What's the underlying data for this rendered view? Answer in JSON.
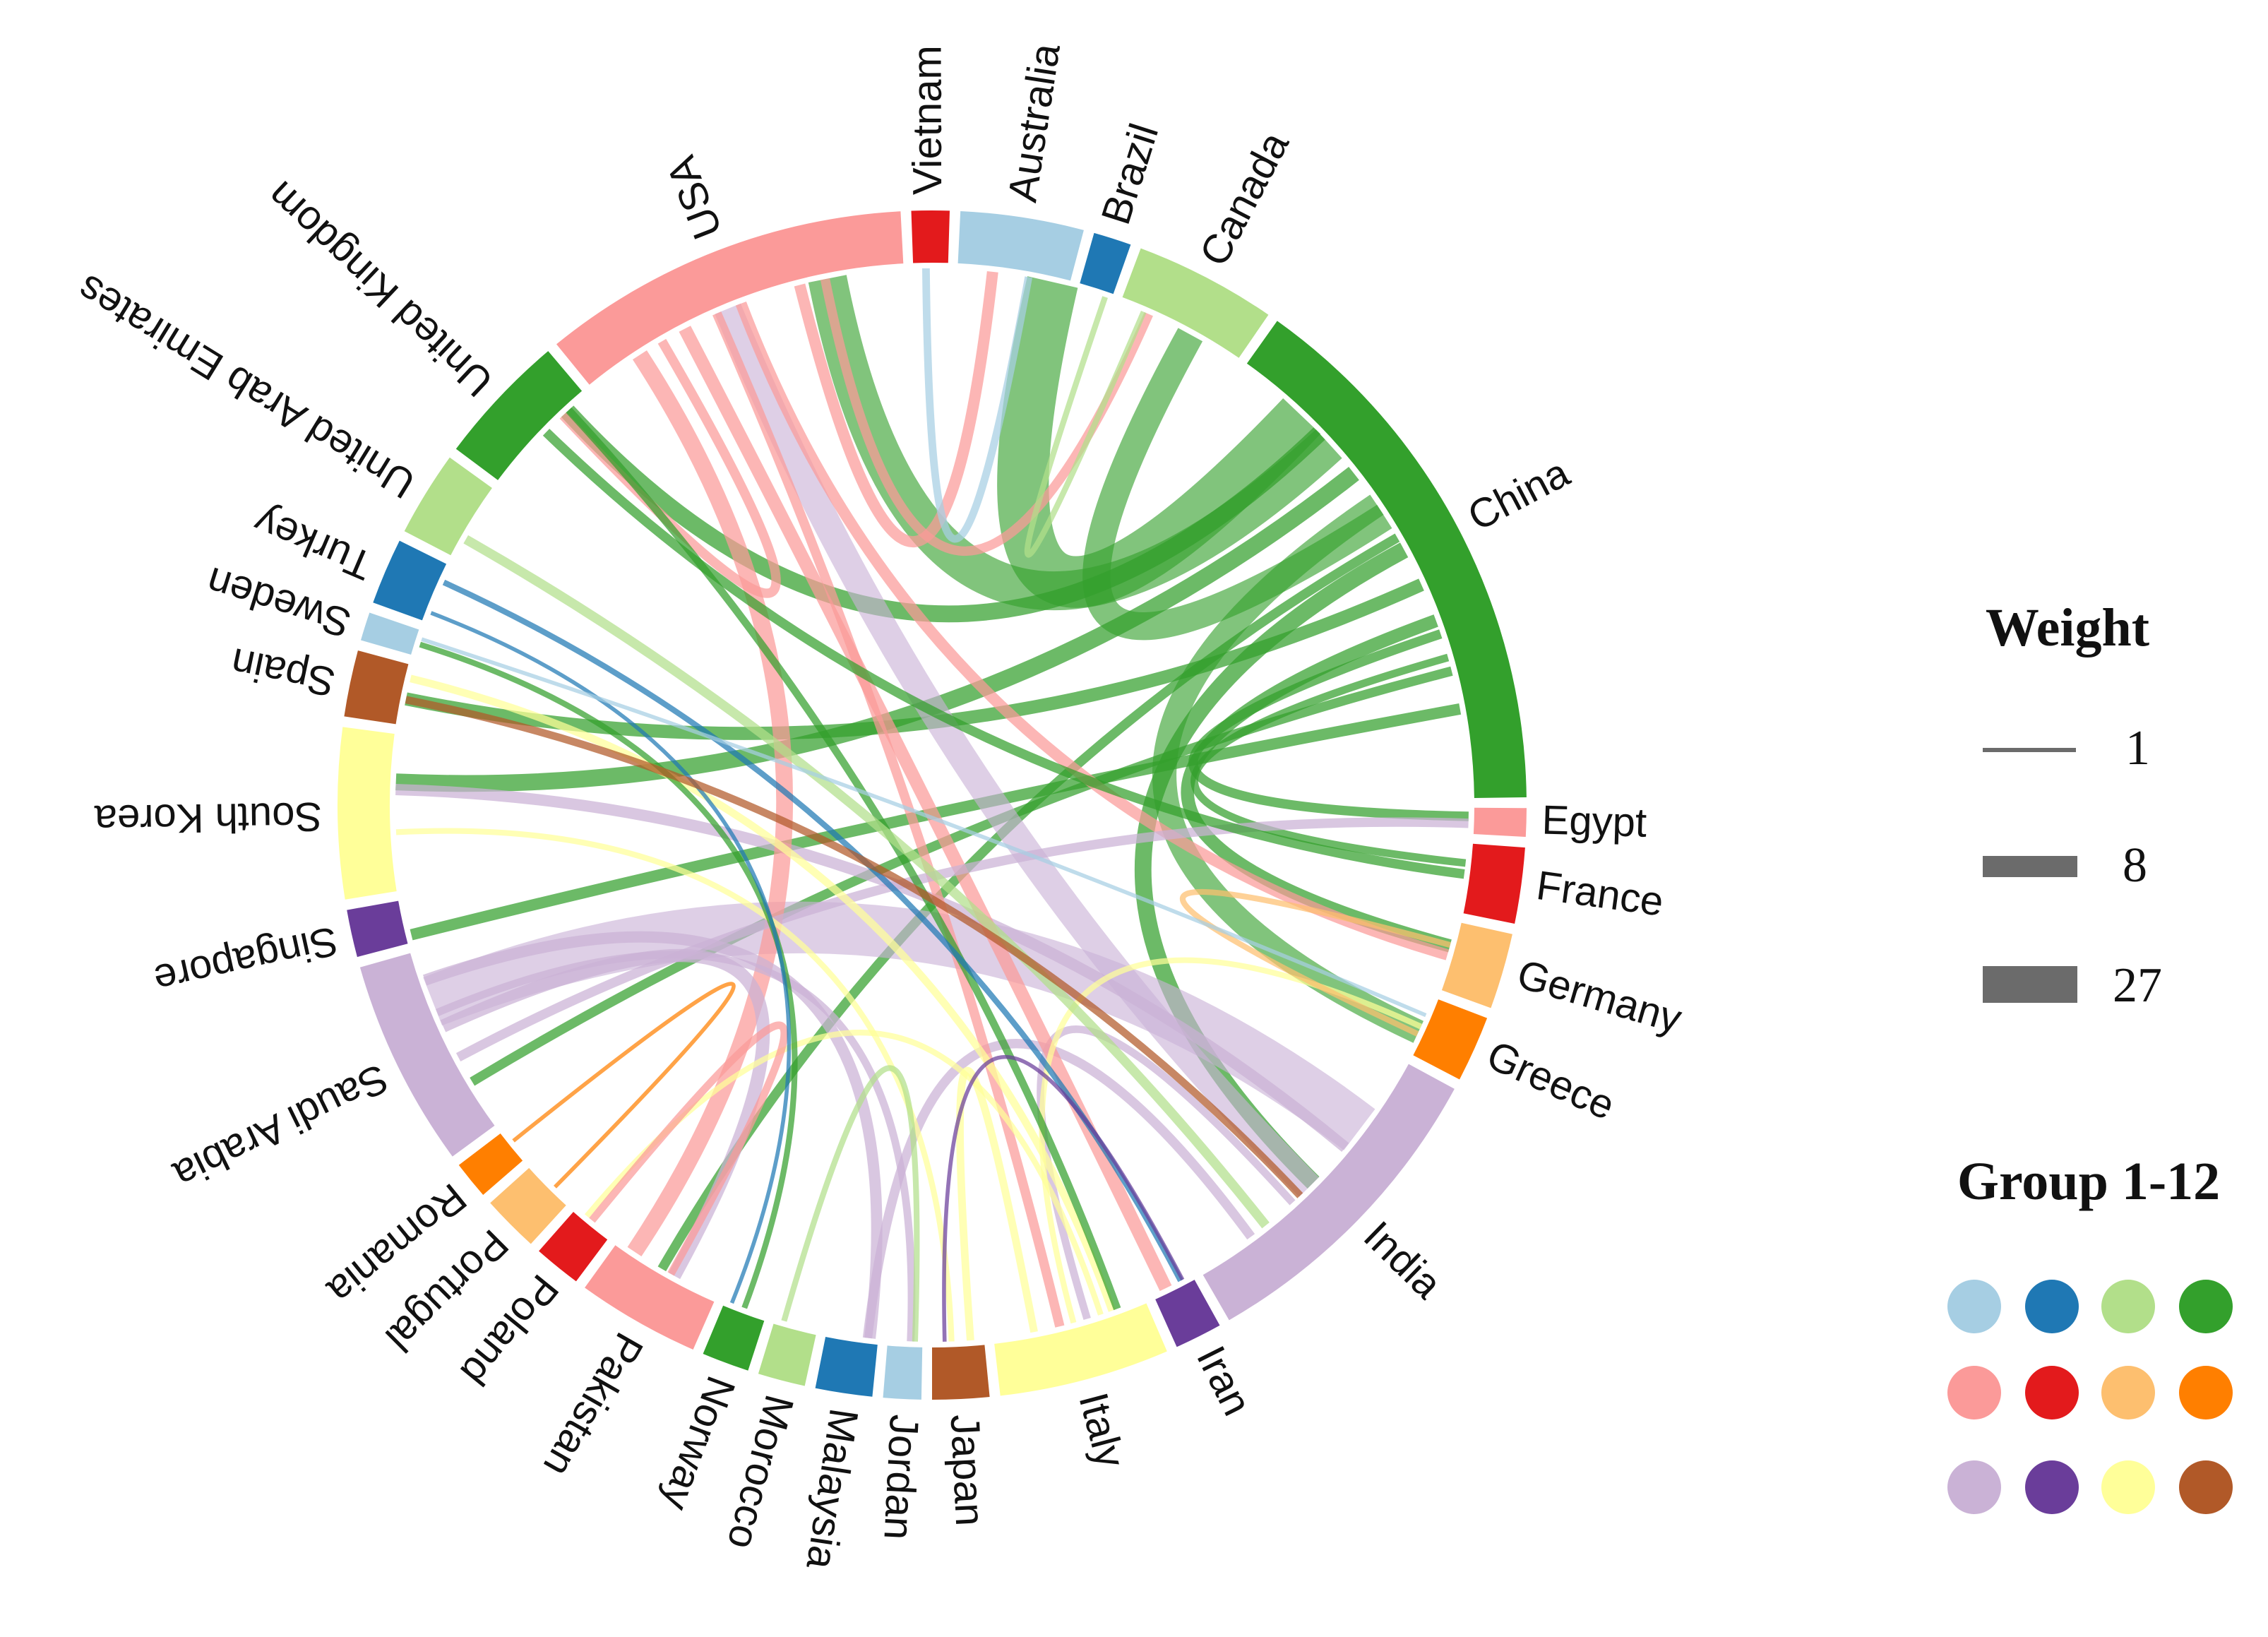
{
  "chart_data": {
    "type": "chord",
    "palette": {
      "1": "#a6cee3",
      "2": "#1f78b4",
      "3": "#b2df8a",
      "4": "#33a02c",
      "5": "#fb9a99",
      "6": "#e31a1c",
      "7": "#fdbf6f",
      "8": "#ff7f00",
      "9": "#cab2d6",
      "10": "#6a3d9a",
      "11": "#ffff99",
      "12": "#b15928"
    },
    "nodes": [
      {
        "name": "Vietnam",
        "group": 6,
        "weight": 4
      },
      {
        "name": "Australia",
        "group": 1,
        "weight": 13
      },
      {
        "name": "Brazil",
        "group": 2,
        "weight": 4
      },
      {
        "name": "Canada",
        "group": 3,
        "weight": 15
      },
      {
        "name": "China",
        "group": 4,
        "weight": 58
      },
      {
        "name": "Egypt",
        "group": 5,
        "weight": 3
      },
      {
        "name": "France",
        "group": 6,
        "weight": 8
      },
      {
        "name": "Germany",
        "group": 7,
        "weight": 8
      },
      {
        "name": "Greece",
        "group": 8,
        "weight": 7
      },
      {
        "name": "India",
        "group": 9,
        "weight": 34
      },
      {
        "name": "Iran",
        "group": 10,
        "weight": 5
      },
      {
        "name": "Italy",
        "group": 11,
        "weight": 18
      },
      {
        "name": "Japan",
        "group": 12,
        "weight": 6
      },
      {
        "name": "Jordan",
        "group": 1,
        "weight": 4
      },
      {
        "name": "Malaysia",
        "group": 2,
        "weight": 6
      },
      {
        "name": "Morocco",
        "group": 3,
        "weight": 5
      },
      {
        "name": "Norway",
        "group": 4,
        "weight": 5
      },
      {
        "name": "Pakistan",
        "group": 5,
        "weight": 13
      },
      {
        "name": "Poland",
        "group": 6,
        "weight": 5
      },
      {
        "name": "Portugal",
        "group": 7,
        "weight": 6
      },
      {
        "name": "Romania",
        "group": 8,
        "weight": 4
      },
      {
        "name": "Saudi Arabia",
        "group": 9,
        "weight": 22
      },
      {
        "name": "Singapore",
        "group": 10,
        "weight": 5
      },
      {
        "name": "South Korea",
        "group": 11,
        "weight": 18
      },
      {
        "name": "Spain",
        "group": 12,
        "weight": 7
      },
      {
        "name": "Sweden",
        "group": 1,
        "weight": 3
      },
      {
        "name": "Turkey",
        "group": 2,
        "weight": 7
      },
      {
        "name": "United Arab Emirates",
        "group": 3,
        "weight": 9
      },
      {
        "name": "United Kingdom",
        "group": 4,
        "weight": 14
      },
      {
        "name": "USA",
        "group": 5,
        "weight": 39
      }
    ],
    "links": [
      [
        "China",
        "Australia",
        27
      ],
      [
        "China",
        "Canada",
        14
      ],
      [
        "China",
        "Egypt",
        4
      ],
      [
        "China",
        "USA",
        20
      ],
      [
        "China",
        "India",
        8
      ],
      [
        "China",
        "Saudi Arabia",
        4
      ],
      [
        "China",
        "South Korea",
        8
      ],
      [
        "China",
        "Spain",
        6
      ],
      [
        "China",
        "Singapore",
        5
      ],
      [
        "China",
        "Greece",
        12
      ],
      [
        "China",
        "Germany",
        6
      ],
      [
        "China",
        "United Kingdom",
        8
      ],
      [
        "China",
        "Pakistan",
        4
      ],
      [
        "China",
        "France",
        3
      ],
      [
        "India",
        "Saudi Arabia",
        27
      ],
      [
        "India",
        "USA",
        14
      ],
      [
        "India",
        "Malaysia",
        4
      ],
      [
        "India",
        "South Korea",
        5
      ],
      [
        "India",
        "Italy",
        3
      ],
      [
        "USA",
        "Pakistan",
        8
      ],
      [
        "USA",
        "Italy",
        4
      ],
      [
        "USA",
        "Australia",
        5
      ],
      [
        "USA",
        "United Kingdom",
        4
      ],
      [
        "USA",
        "Germany",
        5
      ],
      [
        "USA",
        "Canada",
        4
      ],
      [
        "USA",
        "Iran",
        6
      ],
      [
        "Saudi Arabia",
        "Pakistan",
        6
      ],
      [
        "Saudi Arabia",
        "Malaysia",
        5
      ],
      [
        "Saudi Arabia",
        "Egypt",
        4
      ],
      [
        "Saudi Arabia",
        "Jordan",
        3
      ],
      [
        "Italy",
        "Spain",
        3
      ],
      [
        "Italy",
        "Greece",
        2
      ],
      [
        "Italy",
        "Japan",
        3
      ],
      [
        "Italy",
        "Poland",
        2
      ],
      [
        "United Kingdom",
        "France",
        4
      ],
      [
        "United Kingdom",
        "Italy",
        3
      ],
      [
        "South Korea",
        "Japan",
        2
      ],
      [
        "Australia",
        "Vietnam",
        3
      ],
      [
        "Canada",
        "Brazil",
        2
      ],
      [
        "Pakistan",
        "Poland",
        3
      ],
      [
        "Turkey",
        "Iran",
        2
      ],
      [
        "United Arab Emirates",
        "India",
        4
      ],
      [
        "Norway",
        "Sweden",
        2
      ],
      [
        "Morocco",
        "Jordan",
        2
      ],
      [
        "Germany",
        "Greece",
        2
      ],
      [
        "Romania",
        "Portugal",
        1
      ],
      [
        "Turkey",
        "Norway",
        1
      ],
      [
        "Spain",
        "India",
        3
      ],
      [
        "Sweden",
        "Greece",
        1
      ],
      [
        "Iran",
        "Japan",
        1
      ]
    ],
    "legend": {
      "weight_title": "Weight",
      "weight_values": [
        1,
        8,
        27
      ],
      "group_title": "Group 1-12"
    }
  }
}
